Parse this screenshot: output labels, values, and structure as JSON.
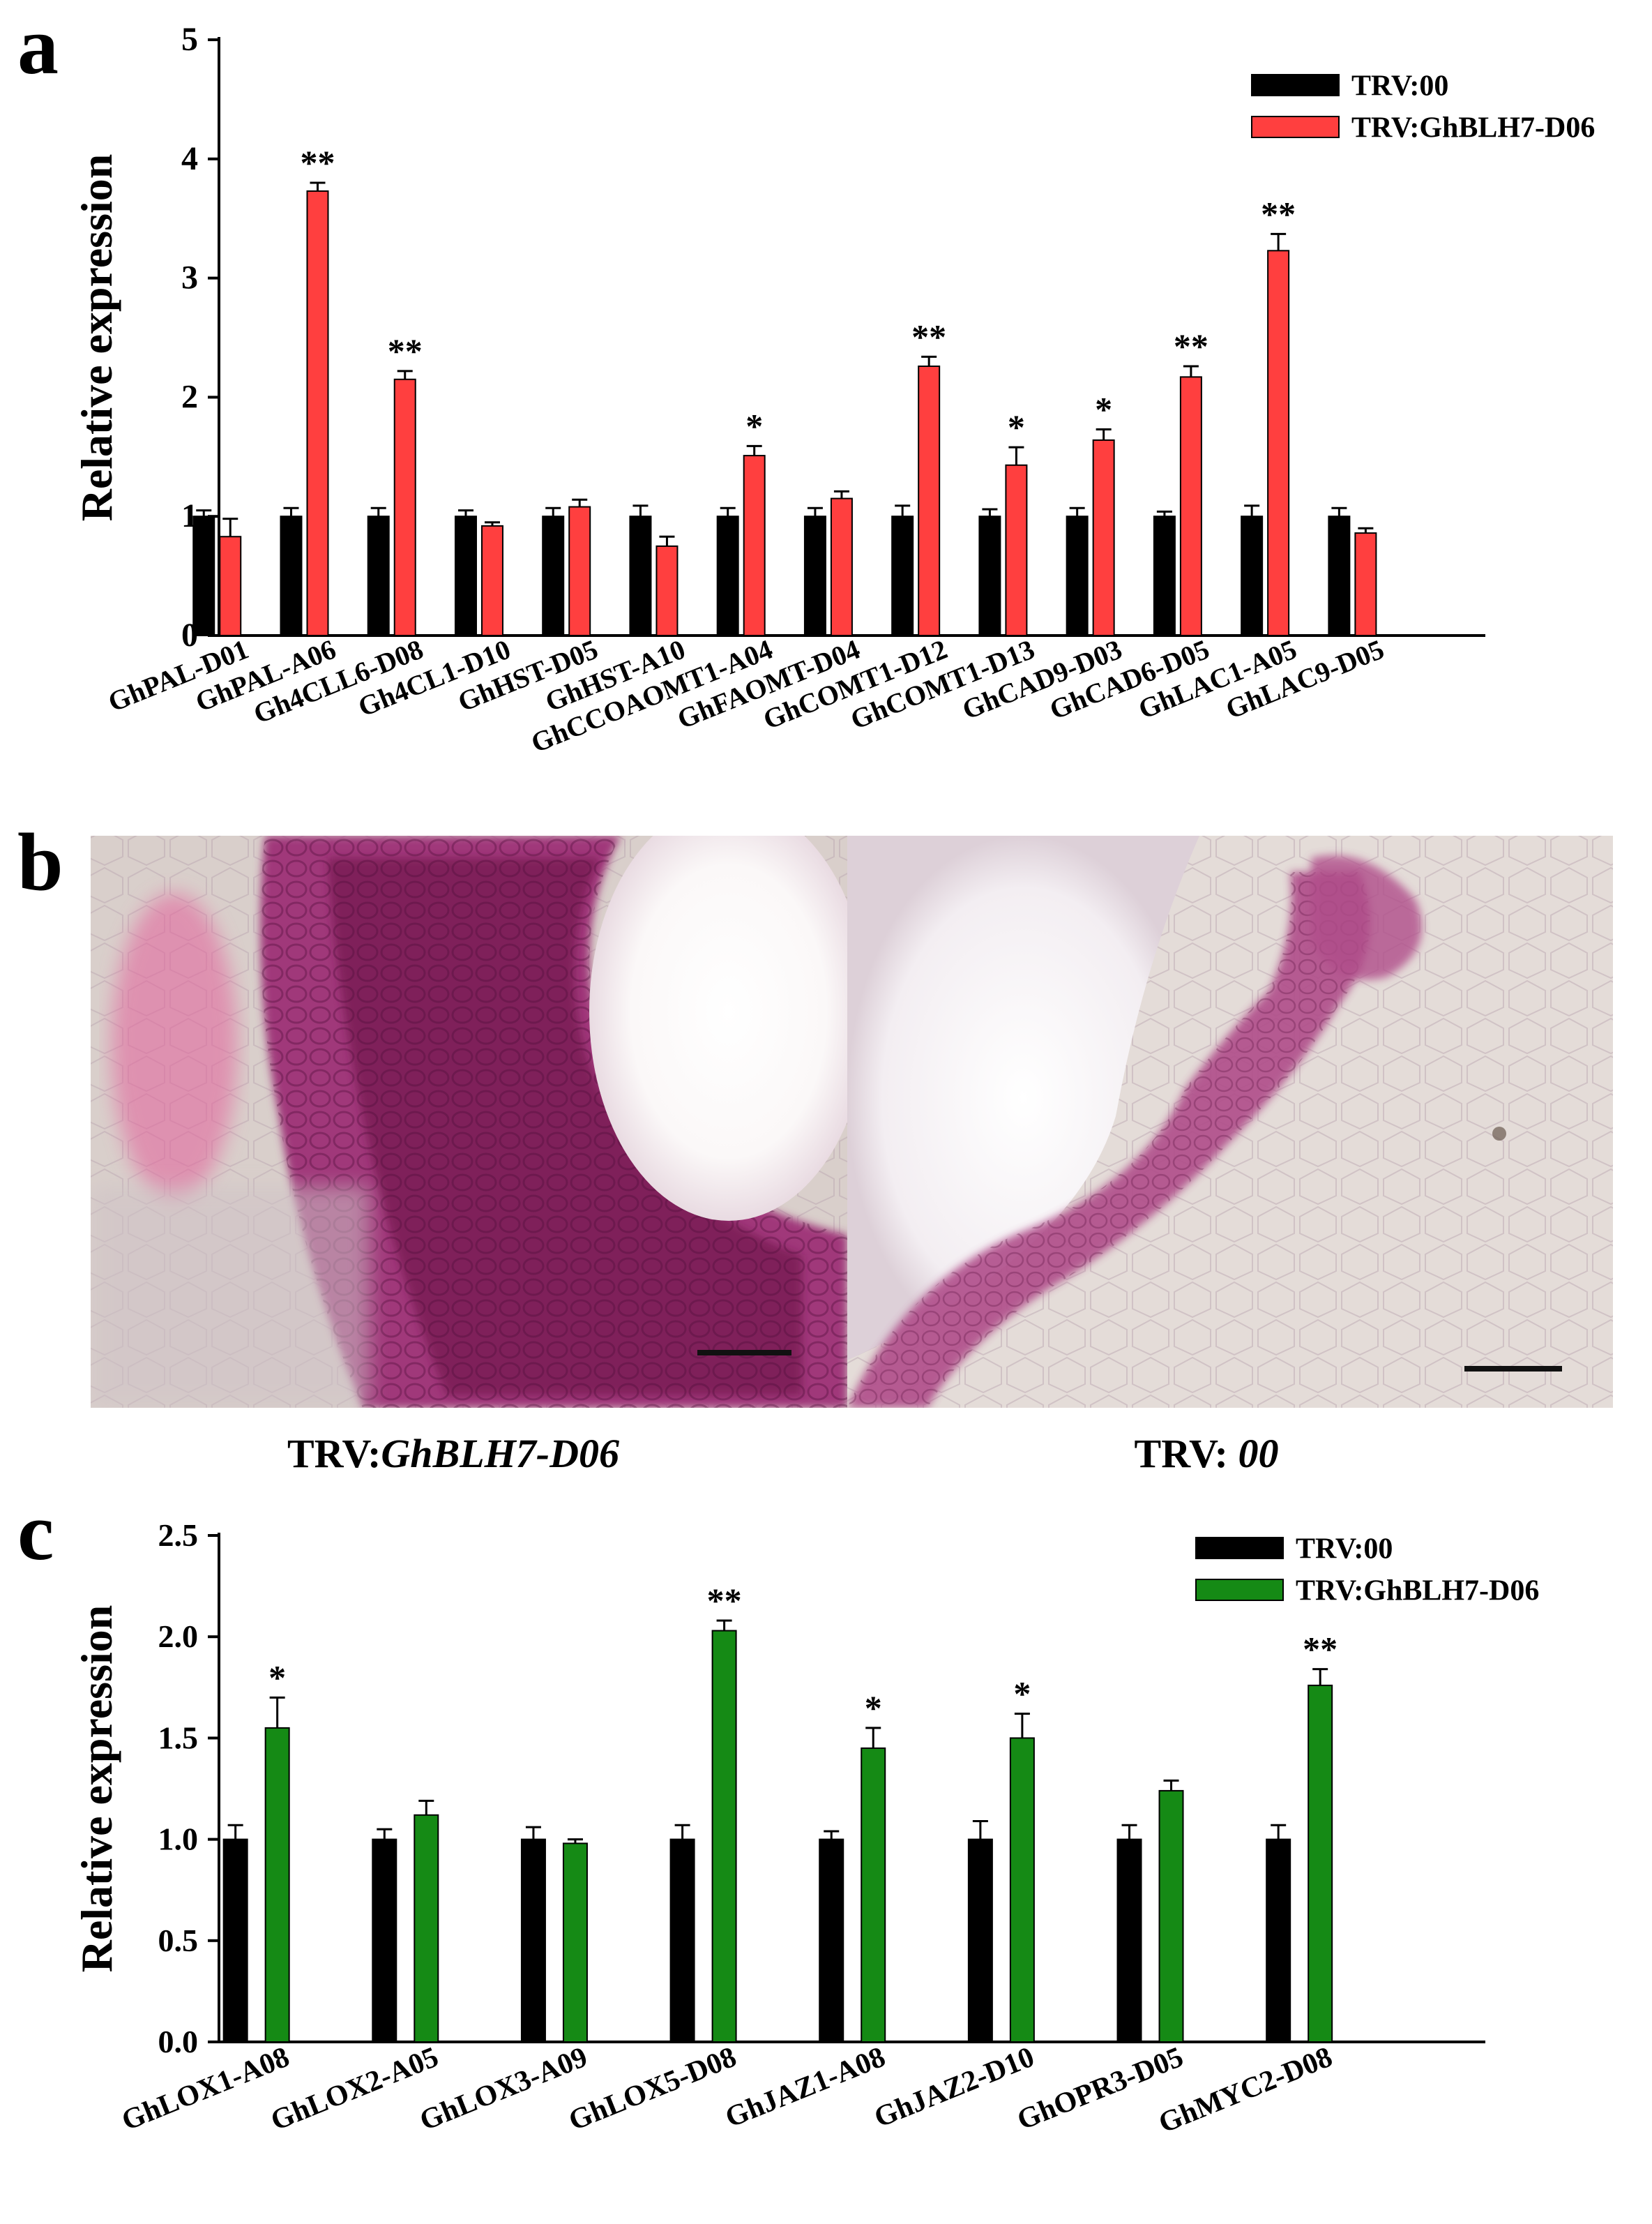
{
  "panel_letters": [
    "a",
    "b",
    "c"
  ],
  "micrographs": [
    {
      "caption_prefix": "TRV:",
      "caption_gene": "GhBLH7-D06"
    },
    {
      "caption_prefix": "TRV: ",
      "caption_gene": "00"
    }
  ],
  "colors": {
    "control": "#000000",
    "treatment_a": "#ff3f3f",
    "treatment_c": "#158a15",
    "stain_dark": "#7a1a55",
    "stain_light": "#b04d8a"
  },
  "chart_data": [
    {
      "type": "bar",
      "panel": "a",
      "title": "",
      "xlabel": "",
      "ylabel": "Relative expression",
      "ylim": [
        0,
        5
      ],
      "yticks": [
        "0",
        "1",
        "2",
        "3",
        "4",
        "5"
      ],
      "legend": "top-right",
      "grid": false,
      "categories": [
        "GhPAL-D01",
        "GhPAL-A06",
        "Gh4CLL6-D08",
        "Gh4CL1-D10",
        "GhHST-D05",
        "GhHST-A10",
        "GhCCOAOMT1-A04",
        "GhFAOMT-D04",
        "GhCOMT1-D12",
        "GhCOMT1-D13",
        "GhCAD9-D03",
        "GhCAD6-D05",
        "GhLAC1-A05",
        "GhLAC9-D05"
      ],
      "series": [
        {
          "name": "TRV:00",
          "color": "#000000",
          "values": [
            1.0,
            1.0,
            1.0,
            1.0,
            1.0,
            1.0,
            1.0,
            1.0,
            1.0,
            1.0,
            1.0,
            1.0,
            1.0,
            1.0
          ],
          "errors": [
            0.05,
            0.07,
            0.07,
            0.05,
            0.07,
            0.09,
            0.07,
            0.07,
            0.09,
            0.06,
            0.07,
            0.04,
            0.09,
            0.07
          ]
        },
        {
          "name": "TRV:GhBLH7-D06",
          "color": "#ff3f3f",
          "values": [
            0.83,
            3.73,
            2.15,
            0.92,
            1.08,
            0.75,
            1.51,
            1.15,
            2.26,
            1.43,
            1.64,
            2.17,
            3.23,
            0.86
          ],
          "errors": [
            0.15,
            0.07,
            0.07,
            0.03,
            0.06,
            0.08,
            0.08,
            0.06,
            0.08,
            0.15,
            0.09,
            0.09,
            0.14,
            0.04
          ]
        }
      ],
      "significance": [
        "",
        "**",
        "**",
        "",
        "",
        "",
        "*",
        "",
        "**",
        "*",
        "*",
        "**",
        "**",
        ""
      ]
    },
    {
      "type": "bar",
      "panel": "c",
      "title": "",
      "xlabel": "",
      "ylabel": "Relative expression",
      "ylim": [
        0,
        2.5
      ],
      "yticks": [
        "0.0",
        "0.5",
        "1.0",
        "1.5",
        "2.0",
        "2.5"
      ],
      "legend": "top-right",
      "grid": false,
      "categories": [
        "GhLOX1-A08",
        "GhLOX2-A05",
        "GhLOX3-A09",
        "GhLOX5-D08",
        "GhJAZ1-A08",
        "GhJAZ2-D10",
        "GhOPR3-D05",
        "GhMYC2-D08"
      ],
      "series": [
        {
          "name": "TRV:00",
          "color": "#000000",
          "values": [
            1.0,
            1.0,
            1.0,
            1.0,
            1.0,
            1.0,
            1.0,
            1.0
          ],
          "errors": [
            0.07,
            0.05,
            0.06,
            0.07,
            0.04,
            0.09,
            0.07,
            0.07
          ]
        },
        {
          "name": "TRV:GhBLH7-D06",
          "color": "#158a15",
          "values": [
            1.55,
            1.12,
            0.98,
            2.03,
            1.45,
            1.5,
            1.24,
            1.76
          ],
          "errors": [
            0.15,
            0.07,
            0.02,
            0.05,
            0.1,
            0.12,
            0.05,
            0.08
          ]
        }
      ],
      "significance": [
        "*",
        "",
        "",
        "**",
        "*",
        "*",
        "",
        "**"
      ]
    }
  ]
}
